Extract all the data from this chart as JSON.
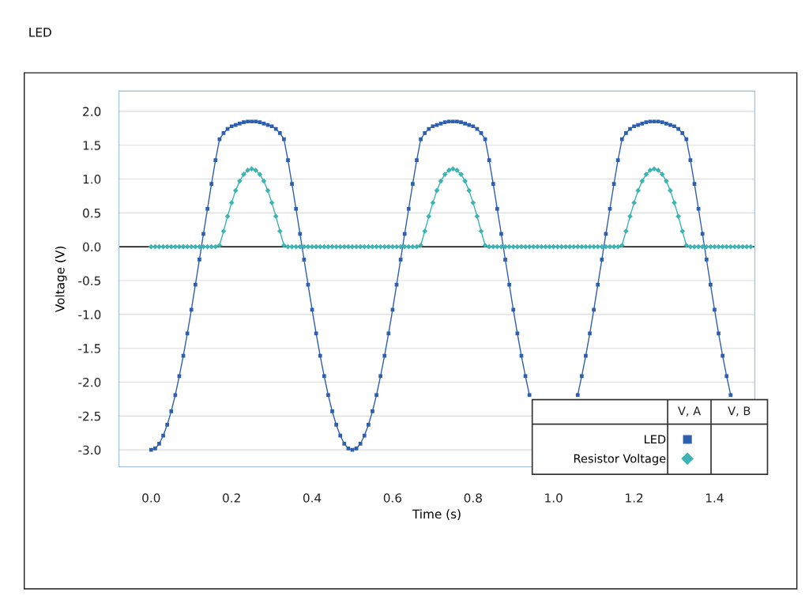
{
  "chart_data": {
    "type": "line",
    "title": "LED",
    "xlabel": "Time (s)",
    "ylabel": "Voltage (V)",
    "x": [
      0.0,
      0.01,
      0.02,
      0.03,
      0.04,
      0.05,
      0.06,
      0.07,
      0.08,
      0.09,
      0.1,
      0.11,
      0.12,
      0.13,
      0.14,
      0.15,
      0.16,
      0.17,
      0.18,
      0.19,
      0.2,
      0.21,
      0.22,
      0.23,
      0.24,
      0.25,
      0.26,
      0.27,
      0.28,
      0.29,
      0.3,
      0.31,
      0.32,
      0.33,
      0.34,
      0.35,
      0.36,
      0.37,
      0.38,
      0.39,
      0.4,
      0.41,
      0.42,
      0.43,
      0.44,
      0.45,
      0.46,
      0.47,
      0.48,
      0.49,
      0.5,
      0.51,
      0.52,
      0.53,
      0.54,
      0.55,
      0.56,
      0.57,
      0.58,
      0.59,
      0.6,
      0.61,
      0.62,
      0.63,
      0.64,
      0.65,
      0.66,
      0.67,
      0.68,
      0.69,
      0.7,
      0.71,
      0.72,
      0.73,
      0.74,
      0.75,
      0.76,
      0.77,
      0.78,
      0.79,
      0.8,
      0.81,
      0.82,
      0.83,
      0.84,
      0.85,
      0.86,
      0.87,
      0.88,
      0.89,
      0.9,
      0.91,
      0.92,
      0.93,
      0.94,
      0.95,
      0.96,
      0.97,
      0.98,
      0.99,
      1.0,
      1.01,
      1.02,
      1.03,
      1.04,
      1.05,
      1.06,
      1.07,
      1.08,
      1.09,
      1.1,
      1.11,
      1.12,
      1.13,
      1.14,
      1.15,
      1.16,
      1.17,
      1.18,
      1.19,
      1.2,
      1.21,
      1.22,
      1.23,
      1.24,
      1.25,
      1.26,
      1.27,
      1.28,
      1.29,
      1.3,
      1.31,
      1.32,
      1.33,
      1.34,
      1.35,
      1.36,
      1.37,
      1.38,
      1.39,
      1.4,
      1.41,
      1.42,
      1.43,
      1.44,
      1.45,
      1.46,
      1.47,
      1.48,
      1.49
    ],
    "series": [
      {
        "name": "LED",
        "color": "#2d5fae",
        "marker": "square",
        "values": [
          -3.0,
          -2.98,
          -2.91,
          -2.79,
          -2.63,
          -2.43,
          -2.19,
          -1.91,
          -1.61,
          -1.28,
          -0.93,
          -0.56,
          -0.19,
          0.19,
          0.56,
          0.93,
          1.28,
          1.59,
          1.68,
          1.74,
          1.78,
          1.8,
          1.82,
          1.84,
          1.85,
          1.85,
          1.85,
          1.84,
          1.82,
          1.8,
          1.78,
          1.74,
          1.68,
          1.59,
          1.28,
          0.93,
          0.56,
          0.19,
          -0.19,
          -0.56,
          -0.93,
          -1.28,
          -1.61,
          -1.91,
          -2.19,
          -2.43,
          -2.63,
          -2.79,
          -2.91,
          -2.98,
          -3.0,
          -2.98,
          -2.91,
          -2.79,
          -2.63,
          -2.43,
          -2.19,
          -1.91,
          -1.61,
          -1.28,
          -0.93,
          -0.56,
          -0.19,
          0.19,
          0.56,
          0.93,
          1.28,
          1.59,
          1.68,
          1.74,
          1.78,
          1.8,
          1.82,
          1.84,
          1.85,
          1.85,
          1.85,
          1.84,
          1.82,
          1.8,
          1.78,
          1.74,
          1.68,
          1.59,
          1.28,
          0.93,
          0.56,
          0.19,
          -0.19,
          -0.56,
          -0.93,
          -1.28,
          -1.61,
          -1.91,
          -2.19,
          null,
          null,
          null,
          null,
          null,
          null,
          null,
          null,
          null,
          null,
          null,
          -2.19,
          -1.91,
          -1.61,
          -1.28,
          -0.93,
          -0.56,
          -0.19,
          0.19,
          0.56,
          0.93,
          1.28,
          1.59,
          1.68,
          1.74,
          1.78,
          1.8,
          1.82,
          1.84,
          1.85,
          1.85,
          1.85,
          1.84,
          1.82,
          1.8,
          1.78,
          1.74,
          1.68,
          1.59,
          1.28,
          0.93,
          0.56,
          0.19,
          -0.19,
          -0.56,
          -0.93,
          -1.28,
          -1.61,
          -1.91,
          -2.19,
          null,
          null,
          null,
          null,
          null
        ]
      },
      {
        "name": "Resistor Voltage",
        "color": "#3db3b3",
        "marker": "diamond",
        "values": [
          0.0,
          0.0,
          0.0,
          0.0,
          0.0,
          0.0,
          0.0,
          0.0,
          0.0,
          0.0,
          0.0,
          0.0,
          0.0,
          0.0,
          0.0,
          0.0,
          0.0,
          0.02,
          0.23,
          0.45,
          0.65,
          0.83,
          0.97,
          1.07,
          1.13,
          1.15,
          1.13,
          1.07,
          0.97,
          0.83,
          0.65,
          0.45,
          0.23,
          0.02,
          0.0,
          0.0,
          0.0,
          0.0,
          0.0,
          0.0,
          0.0,
          0.0,
          0.0,
          0.0,
          0.0,
          0.0,
          0.0,
          0.0,
          0.0,
          0.0,
          0.0,
          0.0,
          0.0,
          0.0,
          0.0,
          0.0,
          0.0,
          0.0,
          0.0,
          0.0,
          0.0,
          0.0,
          0.0,
          0.0,
          0.0,
          0.0,
          0.0,
          0.02,
          0.23,
          0.45,
          0.65,
          0.83,
          0.97,
          1.07,
          1.13,
          1.15,
          1.13,
          1.07,
          0.97,
          0.83,
          0.65,
          0.45,
          0.23,
          0.02,
          0.0,
          0.0,
          0.0,
          0.0,
          0.0,
          0.0,
          0.0,
          0.0,
          0.0,
          0.0,
          0.0,
          0.0,
          0.0,
          0.0,
          0.0,
          0.0,
          0.0,
          0.0,
          0.0,
          0.0,
          0.0,
          0.0,
          0.0,
          0.0,
          0.0,
          0.0,
          0.0,
          0.0,
          0.0,
          0.0,
          0.0,
          0.0,
          0.0,
          0.02,
          0.23,
          0.45,
          0.65,
          0.83,
          0.97,
          1.07,
          1.13,
          1.15,
          1.13,
          1.07,
          0.97,
          0.83,
          0.65,
          0.45,
          0.23,
          0.02,
          0.0,
          0.0,
          0.0,
          0.0,
          0.0,
          0.0,
          0.0,
          0.0,
          0.0,
          0.0,
          0.0,
          0.0,
          0.0,
          0.0,
          0.0,
          0.0
        ]
      }
    ],
    "xlim": [
      -0.08,
      1.5
    ],
    "ylim": [
      -3.25,
      2.3
    ],
    "xticks": [
      {
        "value": 0,
        "label": "0.0"
      },
      {
        "value": 0.2,
        "label": "0.2"
      },
      {
        "value": 0.4,
        "label": "0.4"
      },
      {
        "value": 0.6,
        "label": "0.6"
      },
      {
        "value": 0.8,
        "label": "0.8"
      },
      {
        "value": 1,
        "label": "1.0"
      },
      {
        "value": 1.2,
        "label": "1.2"
      },
      {
        "value": 1.4,
        "label": "1.4"
      }
    ],
    "yticks": [
      {
        "value": -3,
        "label": "-3.0"
      },
      {
        "value": -2.5,
        "label": "-2.5"
      },
      {
        "value": -2,
        "label": "-2.0"
      },
      {
        "value": -1.5,
        "label": "-1.5"
      },
      {
        "value": -1,
        "label": "-1.0"
      },
      {
        "value": -0.5,
        "label": "-0.5"
      },
      {
        "value": 0,
        "label": "0.0"
      },
      {
        "value": 0.5,
        "label": "0.5"
      },
      {
        "value": 1,
        "label": "1.0"
      },
      {
        "value": 1.5,
        "label": "1.5"
      },
      {
        "value": 2,
        "label": "2.0"
      }
    ],
    "grid": "y",
    "legend": "bottom right",
    "ref_lines": [
      {
        "axis": "y",
        "value": 0,
        "color": "#000000"
      }
    ],
    "annotations": [
      "V, A",
      "V, B"
    ]
  }
}
